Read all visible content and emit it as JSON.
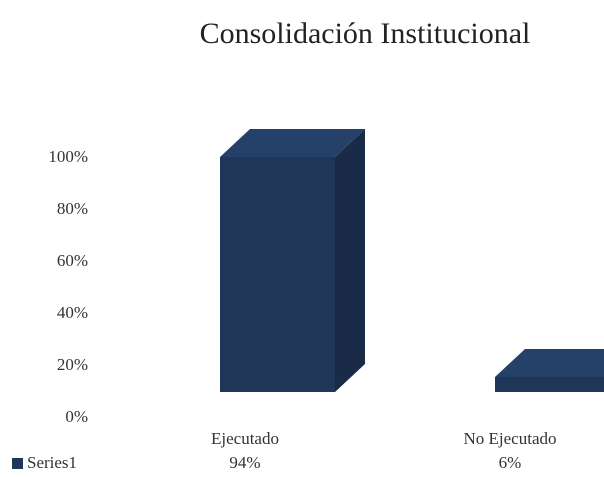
{
  "chart_data": {
    "type": "bar3d",
    "title": "Consolidación Institucional",
    "categories": [
      "Ejecutado",
      "No Ejecutado"
    ],
    "series": [
      {
        "name": "Series1",
        "color": "#1f3658",
        "values": [
          94,
          6
        ],
        "value_labels": [
          "94%",
          "6%"
        ]
      }
    ],
    "ylim": [
      0,
      100
    ],
    "yticks": [
      {
        "value": 0,
        "label": "0%"
      },
      {
        "value": 20,
        "label": "20%"
      },
      {
        "value": 40,
        "label": "40%"
      },
      {
        "value": 60,
        "label": "60%"
      },
      {
        "value": 80,
        "label": "80%"
      },
      {
        "value": 100,
        "label": "100%"
      }
    ],
    "legend": "bottom-left"
  }
}
